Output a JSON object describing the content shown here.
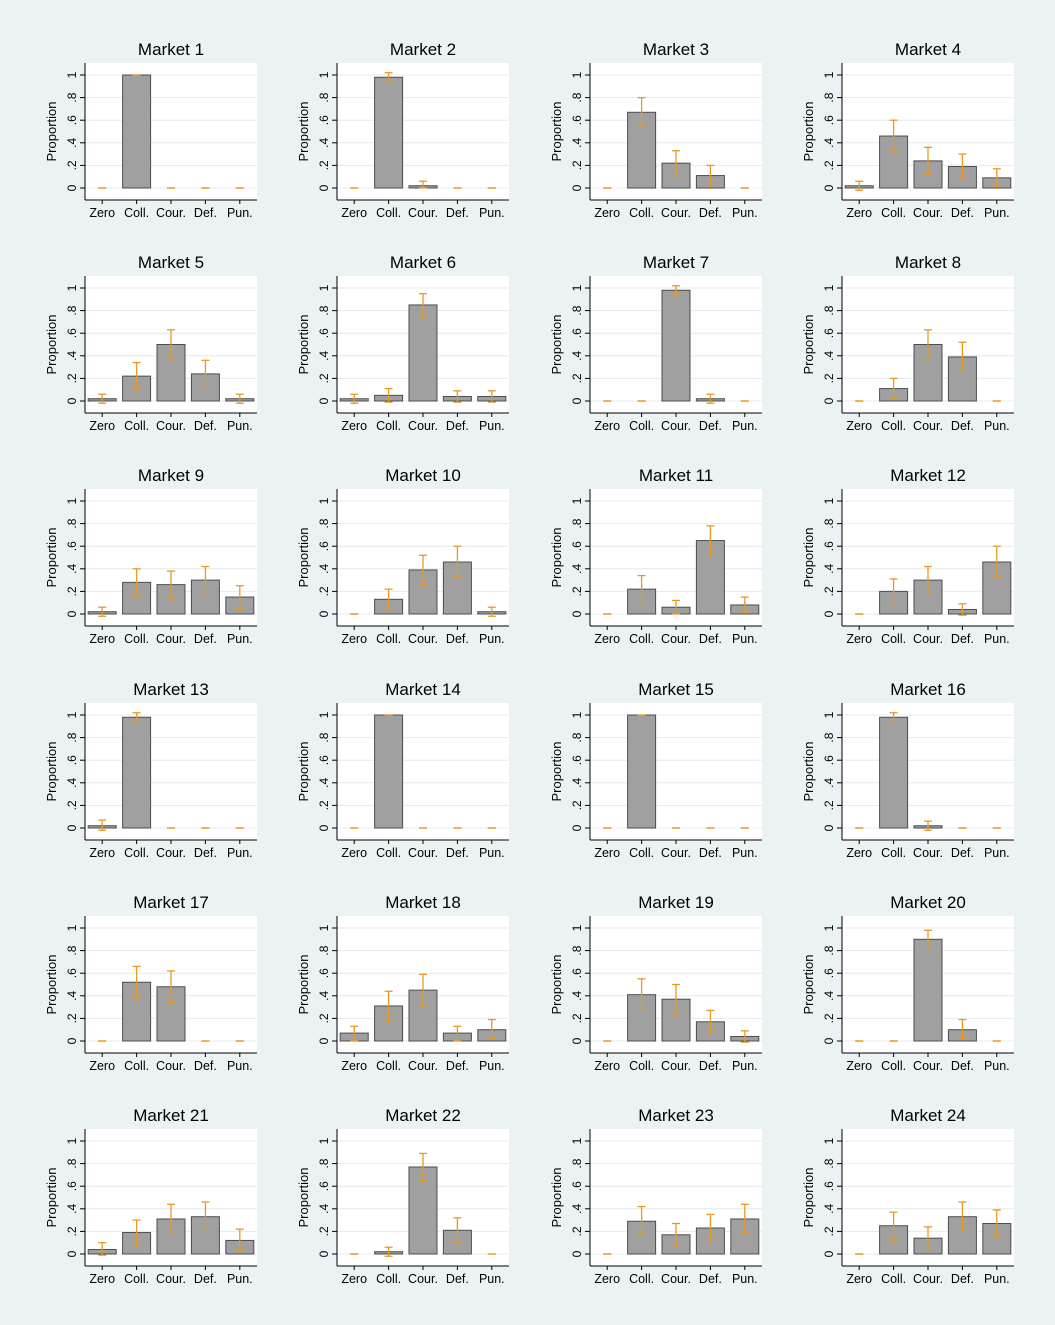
{
  "figure": {
    "ylabel": "Proportion",
    "categories": [
      "Zero",
      "Coll.",
      "Cour.",
      "Def.",
      "Pun."
    ],
    "yticks": [
      {
        "value": 0,
        "label": "0"
      },
      {
        "value": 0.2,
        "label": ".2"
      },
      {
        "value": 0.4,
        "label": ".4"
      },
      {
        "value": 0.6,
        "label": ".6"
      },
      {
        "value": 0.8,
        "label": ".8"
      },
      {
        "value": 1,
        "label": "1"
      }
    ],
    "ylim": [
      0,
      1
    ],
    "colors": {
      "background": "#eaf2f3",
      "plot_background": "#ffffff",
      "bar_fill": "#a0a0a0",
      "bar_stroke": "#4d4d4d",
      "error_bar": "#e69a22",
      "grid": "#e4ecee",
      "axis": "#000000"
    }
  },
  "chart_data": [
    {
      "type": "bar",
      "title": "Market 1",
      "categories": [
        "Zero",
        "Coll.",
        "Cour.",
        "Def.",
        "Pun."
      ],
      "values": [
        0,
        1.0,
        0,
        0,
        0
      ],
      "ci": [
        [
          0,
          0
        ],
        [
          1.0,
          1.0
        ],
        [
          0,
          0
        ],
        [
          0,
          0
        ],
        [
          0,
          0
        ]
      ]
    },
    {
      "type": "bar",
      "title": "Market 2",
      "categories": [
        "Zero",
        "Coll.",
        "Cour.",
        "Def.",
        "Pun."
      ],
      "values": [
        0,
        0.98,
        0.02,
        0,
        0
      ],
      "ci": [
        [
          0,
          0
        ],
        [
          0.94,
          1.02
        ],
        [
          0,
          0.06
        ],
        [
          0,
          0
        ],
        [
          0,
          0
        ]
      ]
    },
    {
      "type": "bar",
      "title": "Market 3",
      "categories": [
        "Zero",
        "Coll.",
        "Cour.",
        "Def.",
        "Pun."
      ],
      "values": [
        0,
        0.67,
        0.22,
        0.11,
        0
      ],
      "ci": [
        [
          0,
          0
        ],
        [
          0.54,
          0.8
        ],
        [
          0.11,
          0.33
        ],
        [
          0.02,
          0.2
        ],
        [
          0,
          0
        ]
      ]
    },
    {
      "type": "bar",
      "title": "Market 4",
      "categories": [
        "Zero",
        "Coll.",
        "Cour.",
        "Def.",
        "Pun."
      ],
      "values": [
        0.02,
        0.46,
        0.24,
        0.19,
        0.09
      ],
      "ci": [
        [
          -0.02,
          0.06
        ],
        [
          0.33,
          0.6
        ],
        [
          0.12,
          0.36
        ],
        [
          0.08,
          0.3
        ],
        [
          0.01,
          0.17
        ]
      ]
    },
    {
      "type": "bar",
      "title": "Market 5",
      "categories": [
        "Zero",
        "Coll.",
        "Cour.",
        "Def.",
        "Pun."
      ],
      "values": [
        0.02,
        0.22,
        0.5,
        0.24,
        0.02
      ],
      "ci": [
        [
          -0.02,
          0.06
        ],
        [
          0.11,
          0.34
        ],
        [
          0.37,
          0.63
        ],
        [
          0.12,
          0.36
        ],
        [
          -0.02,
          0.06
        ]
      ]
    },
    {
      "type": "bar",
      "title": "Market 6",
      "categories": [
        "Zero",
        "Coll.",
        "Cour.",
        "Def.",
        "Pun."
      ],
      "values": [
        0.02,
        0.05,
        0.85,
        0.04,
        0.04
      ],
      "ci": [
        [
          -0.02,
          0.06
        ],
        [
          -0.01,
          0.11
        ],
        [
          0.75,
          0.95
        ],
        [
          -0.01,
          0.09
        ],
        [
          -0.01,
          0.09
        ]
      ]
    },
    {
      "type": "bar",
      "title": "Market 7",
      "categories": [
        "Zero",
        "Coll.",
        "Cour.",
        "Def.",
        "Pun."
      ],
      "values": [
        0,
        0,
        0.98,
        0.02,
        0
      ],
      "ci": [
        [
          0,
          0
        ],
        [
          0,
          0
        ],
        [
          0.94,
          1.02
        ],
        [
          -0.02,
          0.06
        ],
        [
          0,
          0
        ]
      ]
    },
    {
      "type": "bar",
      "title": "Market 8",
      "categories": [
        "Zero",
        "Coll.",
        "Cour.",
        "Def.",
        "Pun."
      ],
      "values": [
        0,
        0.11,
        0.5,
        0.39,
        0
      ],
      "ci": [
        [
          0,
          0
        ],
        [
          0.02,
          0.2
        ],
        [
          0.37,
          0.63
        ],
        [
          0.26,
          0.52
        ],
        [
          0,
          0
        ]
      ]
    },
    {
      "type": "bar",
      "title": "Market 9",
      "categories": [
        "Zero",
        "Coll.",
        "Cour.",
        "Def.",
        "Pun."
      ],
      "values": [
        0.02,
        0.28,
        0.26,
        0.3,
        0.15
      ],
      "ci": [
        [
          -0.02,
          0.06
        ],
        [
          0.16,
          0.4
        ],
        [
          0.14,
          0.38
        ],
        [
          0.18,
          0.42
        ],
        [
          0.05,
          0.25
        ]
      ]
    },
    {
      "type": "bar",
      "title": "Market 10",
      "categories": [
        "Zero",
        "Coll.",
        "Cour.",
        "Def.",
        "Pun."
      ],
      "values": [
        0,
        0.13,
        0.39,
        0.46,
        0.02
      ],
      "ci": [
        [
          0,
          0
        ],
        [
          0.04,
          0.22
        ],
        [
          0.26,
          0.52
        ],
        [
          0.33,
          0.6
        ],
        [
          -0.02,
          0.06
        ]
      ]
    },
    {
      "type": "bar",
      "title": "Market 11",
      "categories": [
        "Zero",
        "Coll.",
        "Cour.",
        "Def.",
        "Pun."
      ],
      "values": [
        0,
        0.22,
        0.06,
        0.65,
        0.08
      ],
      "ci": [
        [
          0,
          0
        ],
        [
          0.11,
          0.34
        ],
        [
          0.0,
          0.12
        ],
        [
          0.52,
          0.78
        ],
        [
          0.01,
          0.15
        ]
      ]
    },
    {
      "type": "bar",
      "title": "Market 12",
      "categories": [
        "Zero",
        "Coll.",
        "Cour.",
        "Def.",
        "Pun."
      ],
      "values": [
        0,
        0.2,
        0.3,
        0.04,
        0.46
      ],
      "ci": [
        [
          0,
          0
        ],
        [
          0.09,
          0.31
        ],
        [
          0.18,
          0.42
        ],
        [
          -0.01,
          0.09
        ],
        [
          0.33,
          0.6
        ]
      ]
    },
    {
      "type": "bar",
      "title": "Market 13",
      "categories": [
        "Zero",
        "Coll.",
        "Cour.",
        "Def.",
        "Pun."
      ],
      "values": [
        0.02,
        0.98,
        0,
        0,
        0
      ],
      "ci": [
        [
          -0.02,
          0.07
        ],
        [
          0.94,
          1.02
        ],
        [
          0,
          0
        ],
        [
          0,
          0
        ],
        [
          0,
          0
        ]
      ]
    },
    {
      "type": "bar",
      "title": "Market 14",
      "categories": [
        "Zero",
        "Coll.",
        "Cour.",
        "Def.",
        "Pun."
      ],
      "values": [
        0,
        1.0,
        0,
        0,
        0
      ],
      "ci": [
        [
          0,
          0
        ],
        [
          1.0,
          1.0
        ],
        [
          0,
          0
        ],
        [
          0,
          0
        ],
        [
          0,
          0
        ]
      ]
    },
    {
      "type": "bar",
      "title": "Market 15",
      "categories": [
        "Zero",
        "Coll.",
        "Cour.",
        "Def.",
        "Pun."
      ],
      "values": [
        0,
        1.0,
        0,
        0,
        0
      ],
      "ci": [
        [
          0,
          0
        ],
        [
          1.0,
          1.0
        ],
        [
          0,
          0
        ],
        [
          0,
          0
        ],
        [
          0,
          0
        ]
      ]
    },
    {
      "type": "bar",
      "title": "Market 16",
      "categories": [
        "Zero",
        "Coll.",
        "Cour.",
        "Def.",
        "Pun."
      ],
      "values": [
        0,
        0.98,
        0.02,
        0,
        0
      ],
      "ci": [
        [
          0,
          0
        ],
        [
          0.94,
          1.02
        ],
        [
          -0.02,
          0.06
        ],
        [
          0,
          0
        ],
        [
          0,
          0
        ]
      ]
    },
    {
      "type": "bar",
      "title": "Market 17",
      "categories": [
        "Zero",
        "Coll.",
        "Cour.",
        "Def.",
        "Pun."
      ],
      "values": [
        0,
        0.52,
        0.48,
        0,
        0
      ],
      "ci": [
        [
          0,
          0
        ],
        [
          0.38,
          0.66
        ],
        [
          0.34,
          0.62
        ],
        [
          0,
          0
        ],
        [
          0,
          0
        ]
      ]
    },
    {
      "type": "bar",
      "title": "Market 18",
      "categories": [
        "Zero",
        "Coll.",
        "Cour.",
        "Def.",
        "Pun."
      ],
      "values": [
        0.07,
        0.31,
        0.45,
        0.07,
        0.1
      ],
      "ci": [
        [
          0.0,
          0.13
        ],
        [
          0.18,
          0.44
        ],
        [
          0.31,
          0.59
        ],
        [
          0.0,
          0.13
        ],
        [
          0.02,
          0.19
        ]
      ]
    },
    {
      "type": "bar",
      "title": "Market 19",
      "categories": [
        "Zero",
        "Coll.",
        "Cour.",
        "Def.",
        "Pun."
      ],
      "values": [
        0,
        0.41,
        0.37,
        0.17,
        0.04
      ],
      "ci": [
        [
          0,
          0
        ],
        [
          0.28,
          0.55
        ],
        [
          0.24,
          0.5
        ],
        [
          0.07,
          0.27
        ],
        [
          -0.01,
          0.09
        ]
      ]
    },
    {
      "type": "bar",
      "title": "Market 20",
      "categories": [
        "Zero",
        "Coll.",
        "Cour.",
        "Def.",
        "Pun."
      ],
      "values": [
        0,
        0,
        0.9,
        0.1,
        0
      ],
      "ci": [
        [
          0,
          0
        ],
        [
          0,
          0
        ],
        [
          0.81,
          0.98
        ],
        [
          0.02,
          0.19
        ],
        [
          0,
          0
        ]
      ]
    },
    {
      "type": "bar",
      "title": "Market 21",
      "categories": [
        "Zero",
        "Coll.",
        "Cour.",
        "Def.",
        "Pun."
      ],
      "values": [
        0.04,
        0.19,
        0.31,
        0.33,
        0.12
      ],
      "ci": [
        [
          -0.01,
          0.1
        ],
        [
          0.08,
          0.3
        ],
        [
          0.18,
          0.44
        ],
        [
          0.2,
          0.46
        ],
        [
          0.03,
          0.22
        ]
      ]
    },
    {
      "type": "bar",
      "title": "Market 22",
      "categories": [
        "Zero",
        "Coll.",
        "Cour.",
        "Def.",
        "Pun."
      ],
      "values": [
        0,
        0.02,
        0.77,
        0.21,
        0
      ],
      "ci": [
        [
          0,
          0
        ],
        [
          -0.02,
          0.06
        ],
        [
          0.65,
          0.89
        ],
        [
          0.1,
          0.32
        ],
        [
          0,
          0
        ]
      ]
    },
    {
      "type": "bar",
      "title": "Market 23",
      "categories": [
        "Zero",
        "Coll.",
        "Cour.",
        "Def.",
        "Pun."
      ],
      "values": [
        0,
        0.29,
        0.17,
        0.23,
        0.31
      ],
      "ci": [
        [
          0,
          0
        ],
        [
          0.17,
          0.42
        ],
        [
          0.06,
          0.27
        ],
        [
          0.11,
          0.35
        ],
        [
          0.19,
          0.44
        ]
      ]
    },
    {
      "type": "bar",
      "title": "Market 24",
      "categories": [
        "Zero",
        "Coll.",
        "Cour.",
        "Def.",
        "Pun."
      ],
      "values": [
        0,
        0.25,
        0.14,
        0.33,
        0.27
      ],
      "ci": [
        [
          0,
          0
        ],
        [
          0.12,
          0.37
        ],
        [
          0.04,
          0.24
        ],
        [
          0.2,
          0.46
        ],
        [
          0.15,
          0.39
        ]
      ]
    }
  ]
}
